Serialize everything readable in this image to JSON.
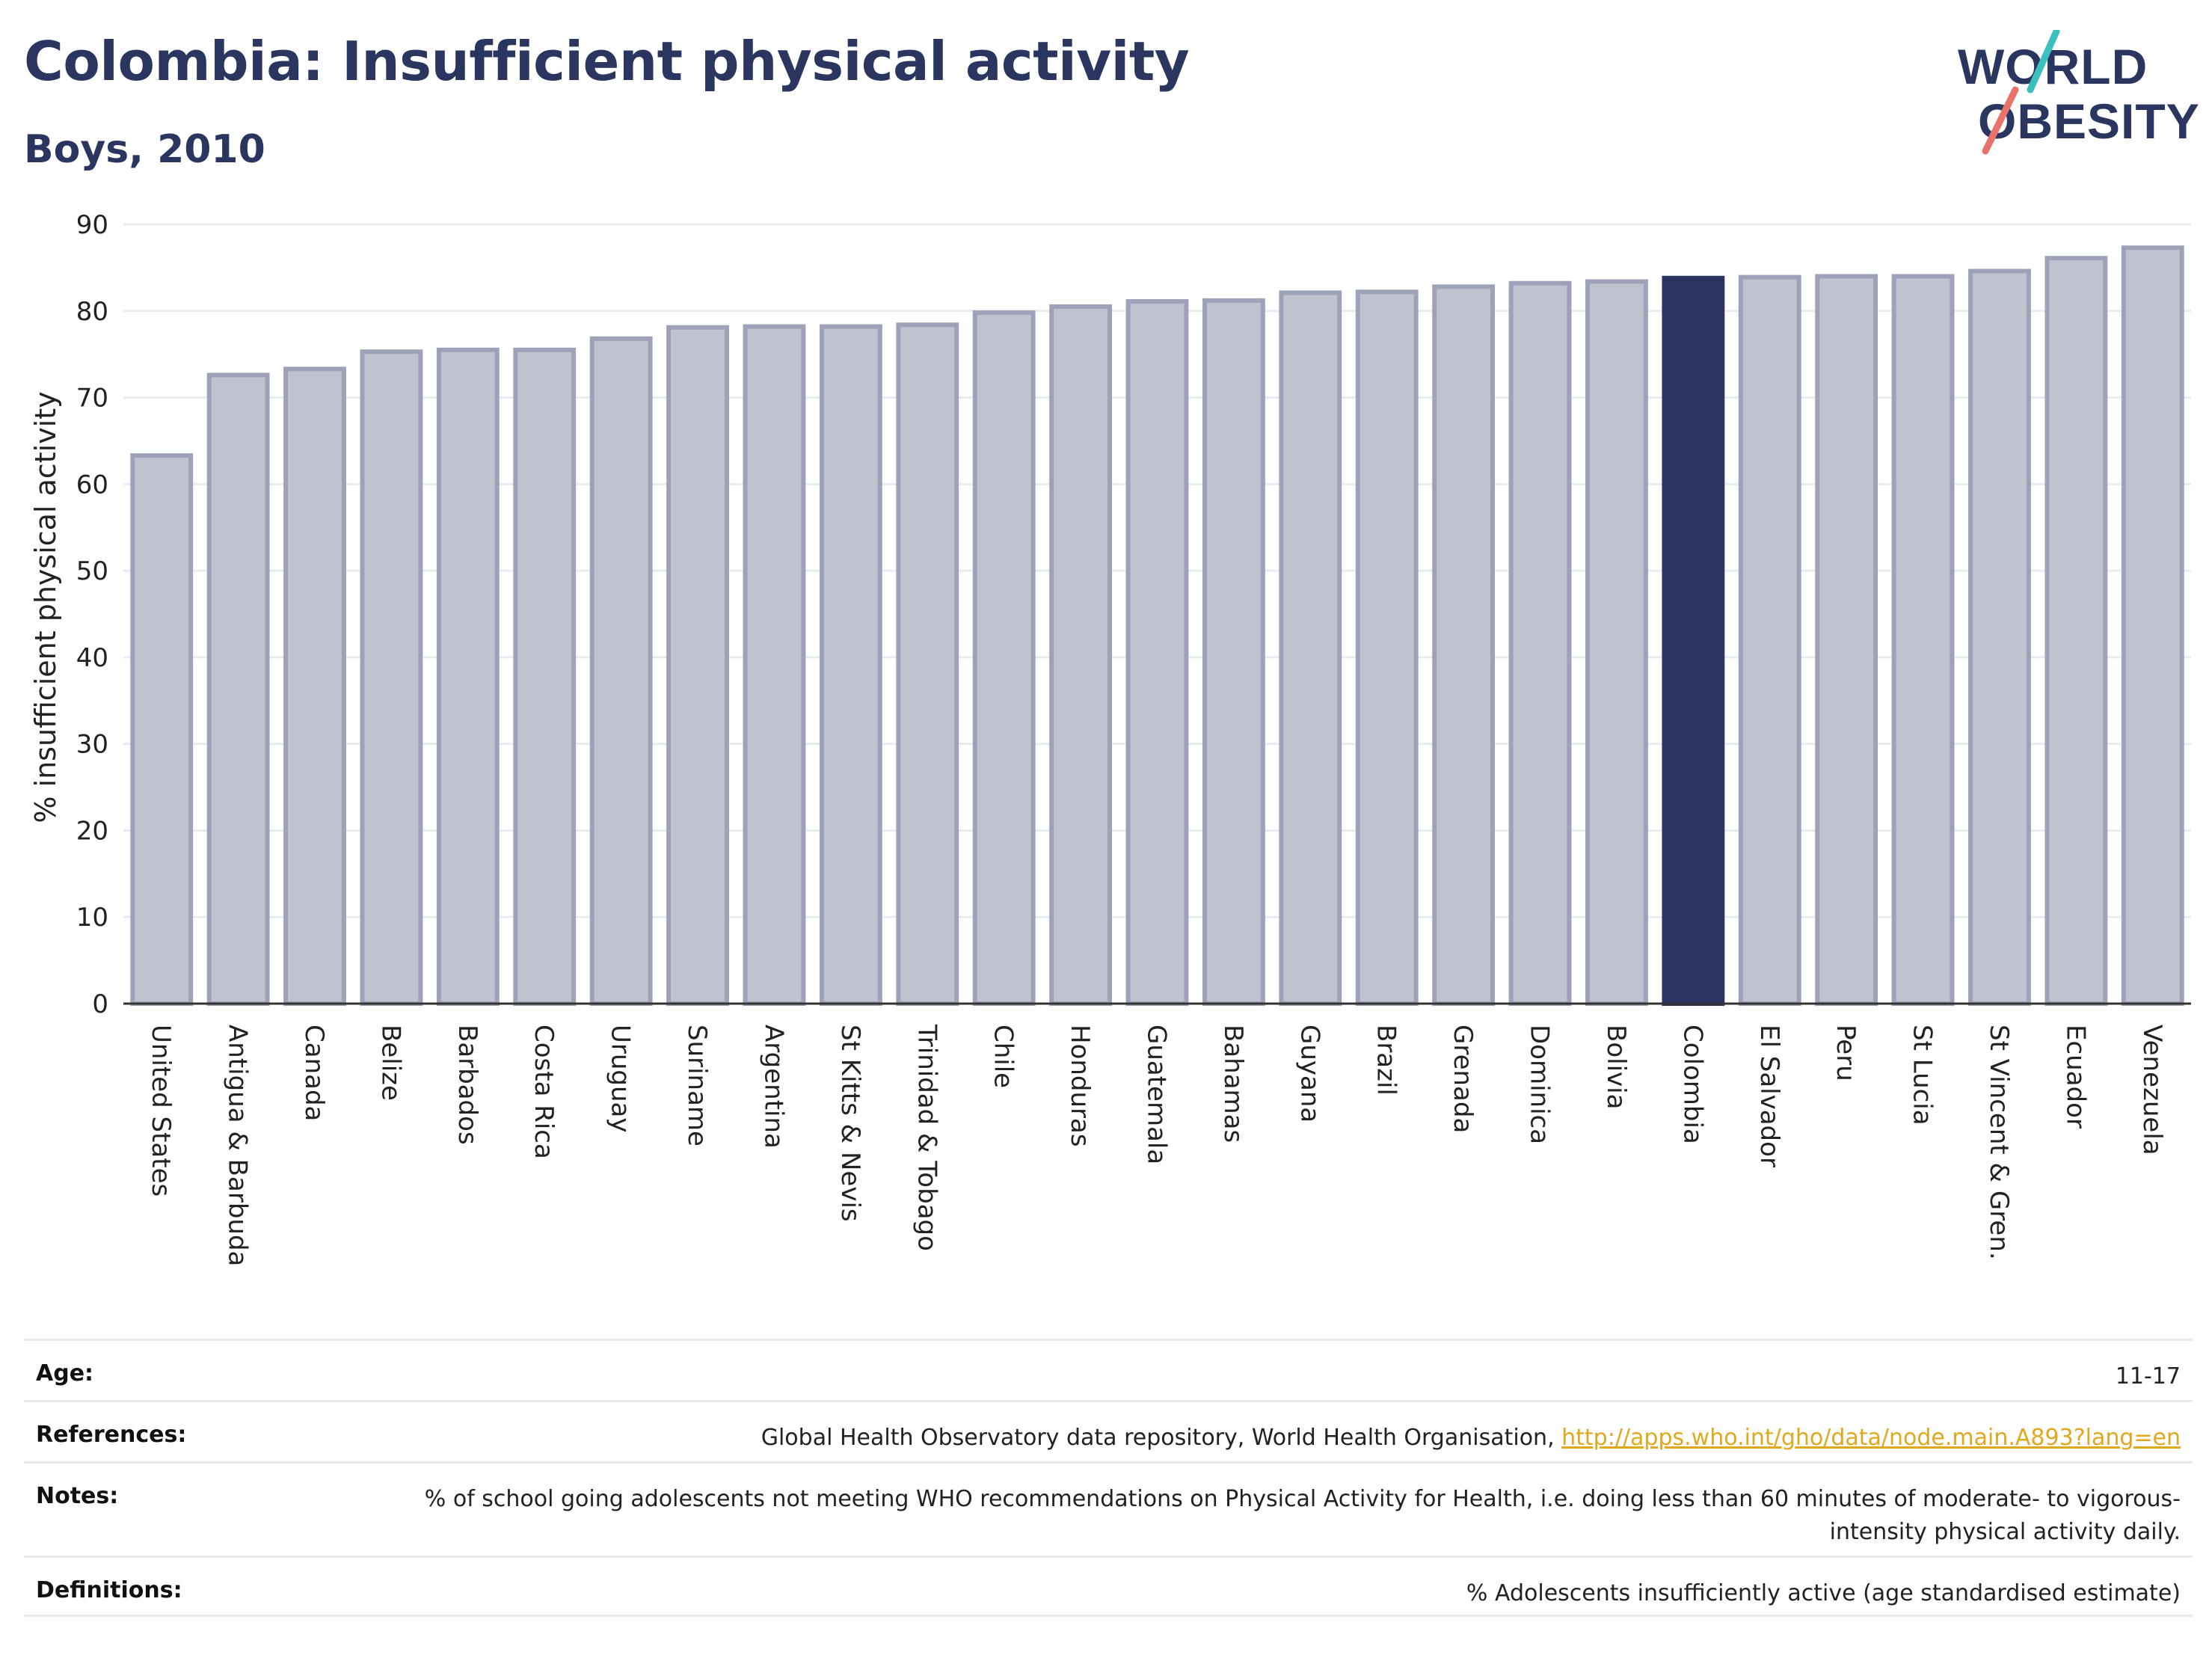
{
  "header": {
    "title": "Colombia: Insufficient physical activity",
    "subtitle": "Boys, 2010"
  },
  "logo": {
    "line1": "WORLD",
    "line2": "OBESITY"
  },
  "chart_data": {
    "type": "bar",
    "title": "Colombia: Insufficient physical activity",
    "subtitle": "Boys, 2010",
    "xlabel": "",
    "ylabel": "% insufficient physical activity",
    "ylim": [
      0,
      90
    ],
    "yticks": [
      0,
      10,
      20,
      30,
      40,
      50,
      60,
      70,
      80,
      90
    ],
    "grid": true,
    "highlight": "Colombia",
    "colors": {
      "bar": "#bfc2cf",
      "bar_edge": "#9da2b8",
      "highlight": "#2a3560",
      "axis": "#333333",
      "grid": "#e8ebf0"
    },
    "categories": [
      "United States",
      "Antigua & Barbuda",
      "Canada",
      "Belize",
      "Barbados",
      "Costa Rica",
      "Uruguay",
      "Suriname",
      "Argentina",
      "St Kitts & Nevis",
      "Trinidad & Tobago",
      "Chile",
      "Honduras",
      "Guatemala",
      "Bahamas",
      "Guyana",
      "Brazil",
      "Grenada",
      "Dominica",
      "Bolivia",
      "Colombia",
      "El Salvador",
      "Peru",
      "St Lucia",
      "St Vincent & Gren.",
      "Ecuador",
      "Venezuela"
    ],
    "values": [
      63.3,
      72.6,
      73.3,
      75.3,
      75.5,
      75.5,
      76.8,
      78.1,
      78.2,
      78.2,
      78.4,
      79.8,
      80.5,
      81.1,
      81.2,
      82.1,
      82.2,
      82.8,
      83.2,
      83.4,
      83.8,
      83.9,
      84.0,
      84.0,
      84.6,
      86.1,
      87.3
    ]
  },
  "info": {
    "age_label": "Age:",
    "age_value": "11-17",
    "references_label": "References:",
    "references_text": "Global Health Observatory data repository, World Health Organisation, ",
    "references_link": "http://apps.who.int/gho/data/node.main.A893?lang=en",
    "notes_label": "Notes:",
    "notes_text": "% of school going adolescents not meeting WHO recommendations on Physical Activity for Health, i.e. doing less than 60 minutes of moderate- to vigorous-intensity physical activity daily.",
    "definitions_label": "Definitions:",
    "definitions_text": "% Adolescents insufficiently active (age standardised estimate)"
  }
}
